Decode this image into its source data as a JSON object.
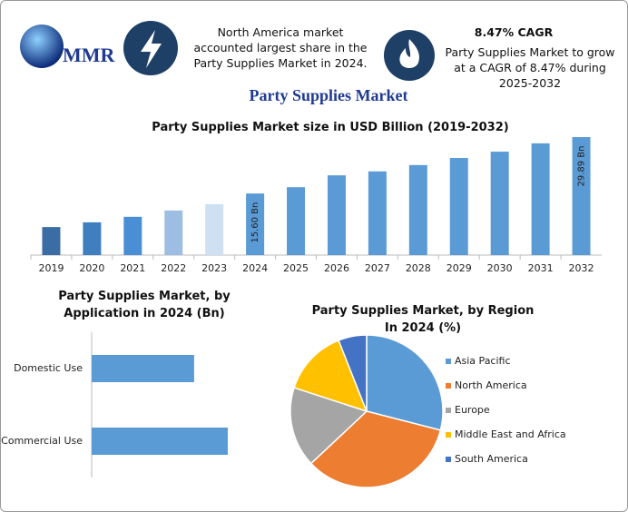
{
  "header": {
    "logo": "MMR",
    "info_left": "North America market accounted largest share in the Party Supplies Market in 2024.",
    "info_right_title": "8.47% CAGR",
    "info_right": "Party Supplies Market to grow at a CAGR of 8.47% during 2025-2032",
    "title": "Party Supplies Market"
  },
  "chart_data": [
    {
      "type": "bar",
      "title": "Party Supplies Market size in USD Billion (2019-2032)",
      "categories": [
        "2019",
        "2020",
        "2021",
        "2022",
        "2023",
        "2024",
        "2025",
        "2026",
        "2027",
        "2028",
        "2029",
        "2030",
        "2031",
        "2032"
      ],
      "values": [
        7.1,
        8.3,
        9.7,
        11.3,
        12.9,
        15.6,
        17.2,
        20.2,
        21.2,
        22.8,
        24.6,
        26.2,
        28.3,
        29.89
      ],
      "value_labels": [
        null,
        null,
        null,
        null,
        null,
        "15.60 Bn",
        null,
        null,
        null,
        null,
        null,
        null,
        null,
        "29.89 Bn"
      ],
      "colors": [
        "#3a6da3",
        "#3f7fc0",
        "#4a8fd6",
        "#9dbde2",
        "#cfe0f3",
        "#5b9bd5",
        "#5b9bd5",
        "#5b9bd5",
        "#5b9bd5",
        "#5b9bd5",
        "#5b9bd5",
        "#5b9bd5",
        "#5b9bd5",
        "#5b9bd5"
      ]
    },
    {
      "type": "hbar",
      "title": "Party Supplies Market, by Application in 2024 (Bn)",
      "categories": [
        "Domestic Use",
        "Commercial Use"
      ],
      "values": [
        6.7,
        8.9
      ],
      "color": "#5b9bd5"
    },
    {
      "type": "pie",
      "title": "Party Supplies Market, by Region In 2024 (%)",
      "categories": [
        "Asia Pacific",
        "North America",
        "Europe",
        "Middle East and Africa",
        "South America"
      ],
      "values": [
        29,
        34,
        17,
        14,
        6
      ],
      "colors": [
        "#5b9bd5",
        "#ed7d31",
        "#a5a5a5",
        "#ffc000",
        "#4472c4"
      ],
      "legend": "right"
    }
  ]
}
